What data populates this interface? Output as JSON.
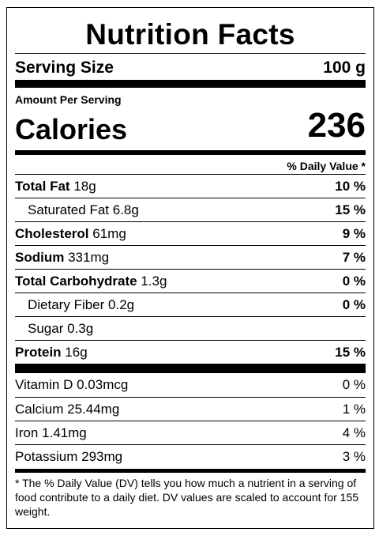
{
  "title": "Nutrition Facts",
  "serving": {
    "label": "Serving Size",
    "value": "100 g"
  },
  "amount_per_serving": "Amount Per Serving",
  "calories": {
    "label": "Calories",
    "value": "236"
  },
  "daily_value_header": "% Daily Value *",
  "nutrients": [
    {
      "name": "Total Fat",
      "amount": "18g",
      "dv": "10 %"
    },
    {
      "name": "Saturated Fat",
      "amount": "6.8g",
      "dv": "15 %"
    },
    {
      "name": "Cholesterol",
      "amount": "61mg",
      "dv": "9 %"
    },
    {
      "name": "Sodium",
      "amount": "331mg",
      "dv": "7 %"
    },
    {
      "name": "Total Carbohydrate",
      "amount": "1.3g",
      "dv": "0 %"
    },
    {
      "name": "Dietary Fiber",
      "amount": "0.2g",
      "dv": "0 %"
    },
    {
      "name": "Sugar",
      "amount": "0.3g",
      "dv": ""
    },
    {
      "name": "Protein",
      "amount": "16g",
      "dv": "15 %"
    }
  ],
  "vitamins": [
    {
      "name": "Vitamin D",
      "amount": "0.03mcg",
      "dv": "0 %"
    },
    {
      "name": "Calcium",
      "amount": "25.44mg",
      "dv": "1 %"
    },
    {
      "name": "Iron",
      "amount": "1.41mg",
      "dv": "4 %"
    },
    {
      "name": "Potassium",
      "amount": "293mg",
      "dv": "3 %"
    }
  ],
  "footnote": "* The % Daily Value (DV) tells you how much a nutrient in a serving of food contribute to a daily diet. DV values are scaled to account for 155 weight."
}
